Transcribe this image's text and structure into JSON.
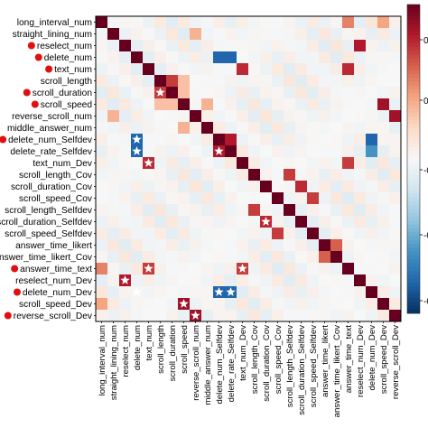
{
  "chart_data": {
    "type": "heatmap",
    "labels": [
      "long_interval_num",
      "straight_lining_num",
      "reselect_num",
      "delete_num",
      "text_num",
      "scroll_length",
      "scroll_duration",
      "scroll_speed",
      "reverse_scroll_num",
      "middle_answer_num",
      "delete_num_Selfdev",
      "delete_rate_Selfdev",
      "text_num_Dev",
      "scroll_length_Cov",
      "scroll_duration_Cov",
      "scroll_speed_Cov",
      "scroll_length_Selfdev",
      "scroll_duration_Selfdev",
      "scroll_speed_Selfdev",
      "answer_time_likert",
      "answer_time_likert_Cov",
      "answer_time_text",
      "reselect_num_Dev",
      "delete_num_Dev",
      "scroll_speed_Dev",
      "reverse_scroll_Dev"
    ],
    "red_dot_rows": [
      2,
      3,
      4,
      6,
      7,
      10,
      21,
      23,
      25
    ],
    "highlighted_values": [
      {
        "row": 1,
        "col": 1,
        "v": 1
      },
      {
        "row": 2,
        "col": 2,
        "v": 1
      },
      {
        "row": 3,
        "col": 3,
        "v": 1
      },
      {
        "row": 4,
        "col": 4,
        "v": 1
      },
      {
        "row": 5,
        "col": 5,
        "v": 1
      },
      {
        "row": 6,
        "col": 6,
        "v": 1
      },
      {
        "row": 7,
        "col": 7,
        "v": 1
      },
      {
        "row": 8,
        "col": 8,
        "v": 1
      },
      {
        "row": 9,
        "col": 9,
        "v": 1
      },
      {
        "row": 10,
        "col": 10,
        "v": 1
      },
      {
        "row": 11,
        "col": 11,
        "v": 1
      },
      {
        "row": 12,
        "col": 12,
        "v": 1
      },
      {
        "row": 13,
        "col": 13,
        "v": 1
      },
      {
        "row": 14,
        "col": 14,
        "v": 1
      },
      {
        "row": 15,
        "col": 15,
        "v": 1
      },
      {
        "row": 16,
        "col": 16,
        "v": 1
      },
      {
        "row": 17,
        "col": 17,
        "v": 1
      },
      {
        "row": 18,
        "col": 18,
        "v": 1
      },
      {
        "row": 19,
        "col": 19,
        "v": 1
      },
      {
        "row": 20,
        "col": 20,
        "v": 1
      },
      {
        "row": 21,
        "col": 21,
        "v": 1
      },
      {
        "row": 22,
        "col": 22,
        "v": 1
      },
      {
        "row": 23,
        "col": 23,
        "v": 1
      },
      {
        "row": 24,
        "col": 24,
        "v": 1
      },
      {
        "row": 25,
        "col": 25,
        "v": 1
      },
      {
        "row": 0,
        "col": 0,
        "v": 1
      },
      {
        "row": 3,
        "col": 10,
        "v": -0.8
      },
      {
        "row": 3,
        "col": 11,
        "v": -0.8
      },
      {
        "row": 10,
        "col": 3,
        "v": -0.8
      },
      {
        "row": 11,
        "col": 3,
        "v": -0.8
      },
      {
        "row": 23,
        "col": 10,
        "v": -0.8
      },
      {
        "row": 23,
        "col": 11,
        "v": -0.8
      },
      {
        "row": 10,
        "col": 23,
        "v": -0.8
      },
      {
        "row": 11,
        "col": 23,
        "v": -0.6
      },
      {
        "row": 10,
        "col": 11,
        "v": 0.8
      },
      {
        "row": 11,
        "col": 10,
        "v": 0.8
      },
      {
        "row": 4,
        "col": 12,
        "v": 0.75
      },
      {
        "row": 12,
        "col": 4,
        "v": 0.75
      },
      {
        "row": 2,
        "col": 22,
        "v": 0.8
      },
      {
        "row": 22,
        "col": 2,
        "v": 0.8
      },
      {
        "row": 7,
        "col": 24,
        "v": 0.85
      },
      {
        "row": 24,
        "col": 7,
        "v": 0.85
      },
      {
        "row": 8,
        "col": 25,
        "v": 0.85
      },
      {
        "row": 25,
        "col": 8,
        "v": 0.85
      },
      {
        "row": 5,
        "col": 6,
        "v": 0.7
      },
      {
        "row": 6,
        "col": 5,
        "v": 0.7
      },
      {
        "row": 4,
        "col": 21,
        "v": 0.75
      },
      {
        "row": 21,
        "col": 4,
        "v": 0.7
      },
      {
        "row": 21,
        "col": 12,
        "v": 0.7
      },
      {
        "row": 12,
        "col": 21,
        "v": 0.7
      },
      {
        "row": 13,
        "col": 16,
        "v": 0.7
      },
      {
        "row": 16,
        "col": 13,
        "v": 0.7
      },
      {
        "row": 14,
        "col": 17,
        "v": 0.75
      },
      {
        "row": 17,
        "col": 14,
        "v": 0.75
      },
      {
        "row": 15,
        "col": 18,
        "v": 0.7
      },
      {
        "row": 18,
        "col": 15,
        "v": 0.7
      },
      {
        "row": 19,
        "col": 20,
        "v": 0.6
      },
      {
        "row": 20,
        "col": 19,
        "v": 0.6
      },
      {
        "row": 0,
        "col": 21,
        "v": 0.5
      },
      {
        "row": 21,
        "col": 0,
        "v": 0.5
      },
      {
        "row": 0,
        "col": 24,
        "v": 0.4
      },
      {
        "row": 24,
        "col": 0,
        "v": 0.4
      },
      {
        "row": 5,
        "col": 7,
        "v": 0.3
      },
      {
        "row": 7,
        "col": 5,
        "v": 0.3
      },
      {
        "row": 6,
        "col": 7,
        "v": 0.3
      },
      {
        "row": 7,
        "col": 6,
        "v": 0.3
      },
      {
        "row": 7,
        "col": 9,
        "v": 0.35
      },
      {
        "row": 9,
        "col": 7,
        "v": 0.35
      },
      {
        "row": 1,
        "col": 8,
        "v": 0.35
      },
      {
        "row": 8,
        "col": 1,
        "v": 0.35
      }
    ],
    "starred_cells": [
      [
        6,
        5
      ],
      [
        10,
        3
      ],
      [
        11,
        3
      ],
      [
        11,
        10
      ],
      [
        12,
        4
      ],
      [
        21,
        4
      ],
      [
        21,
        12
      ],
      [
        22,
        2
      ],
      [
        23,
        3
      ],
      [
        23,
        10
      ],
      [
        23,
        11
      ],
      [
        24,
        7
      ],
      [
        25,
        8
      ],
      [
        17,
        14
      ]
    ],
    "colorbar_tick_labels": [
      "0",
      "0",
      "-0",
      "-0",
      "-0"
    ],
    "colormap": {
      "negative": "#053061",
      "mid": "#f7f7f7",
      "positive": "#67001f"
    }
  }
}
